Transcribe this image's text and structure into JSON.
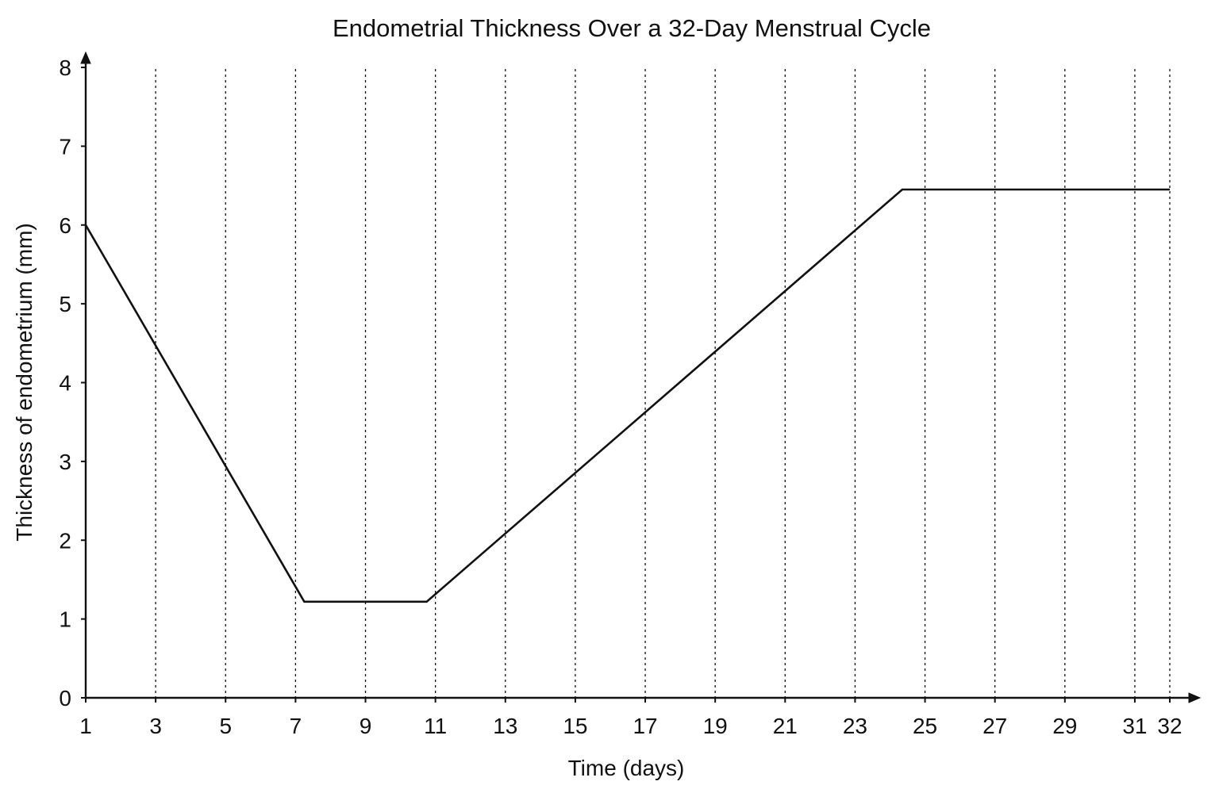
{
  "chart_data": {
    "type": "line",
    "title": "Endometrial Thickness Over a 32-Day Menstrual Cycle",
    "xlabel": "Time (days)",
    "ylabel": "Thickness of endometrium (mm)",
    "xlim": [
      1,
      32
    ],
    "ylim": [
      0,
      8
    ],
    "x_ticks": [
      1,
      3,
      5,
      7,
      9,
      11,
      13,
      15,
      17,
      19,
      21,
      23,
      25,
      27,
      29,
      31,
      32
    ],
    "y_ticks": [
      0,
      1,
      2,
      3,
      4,
      5,
      6,
      7,
      8
    ],
    "grid": "vertical dashed lines at each x tick",
    "legend": "none",
    "series": [
      {
        "x": [
          1,
          7.25,
          10.75,
          24.35,
          32
        ],
        "y": [
          6.0,
          1.22,
          1.22,
          6.45,
          6.45
        ]
      }
    ]
  }
}
